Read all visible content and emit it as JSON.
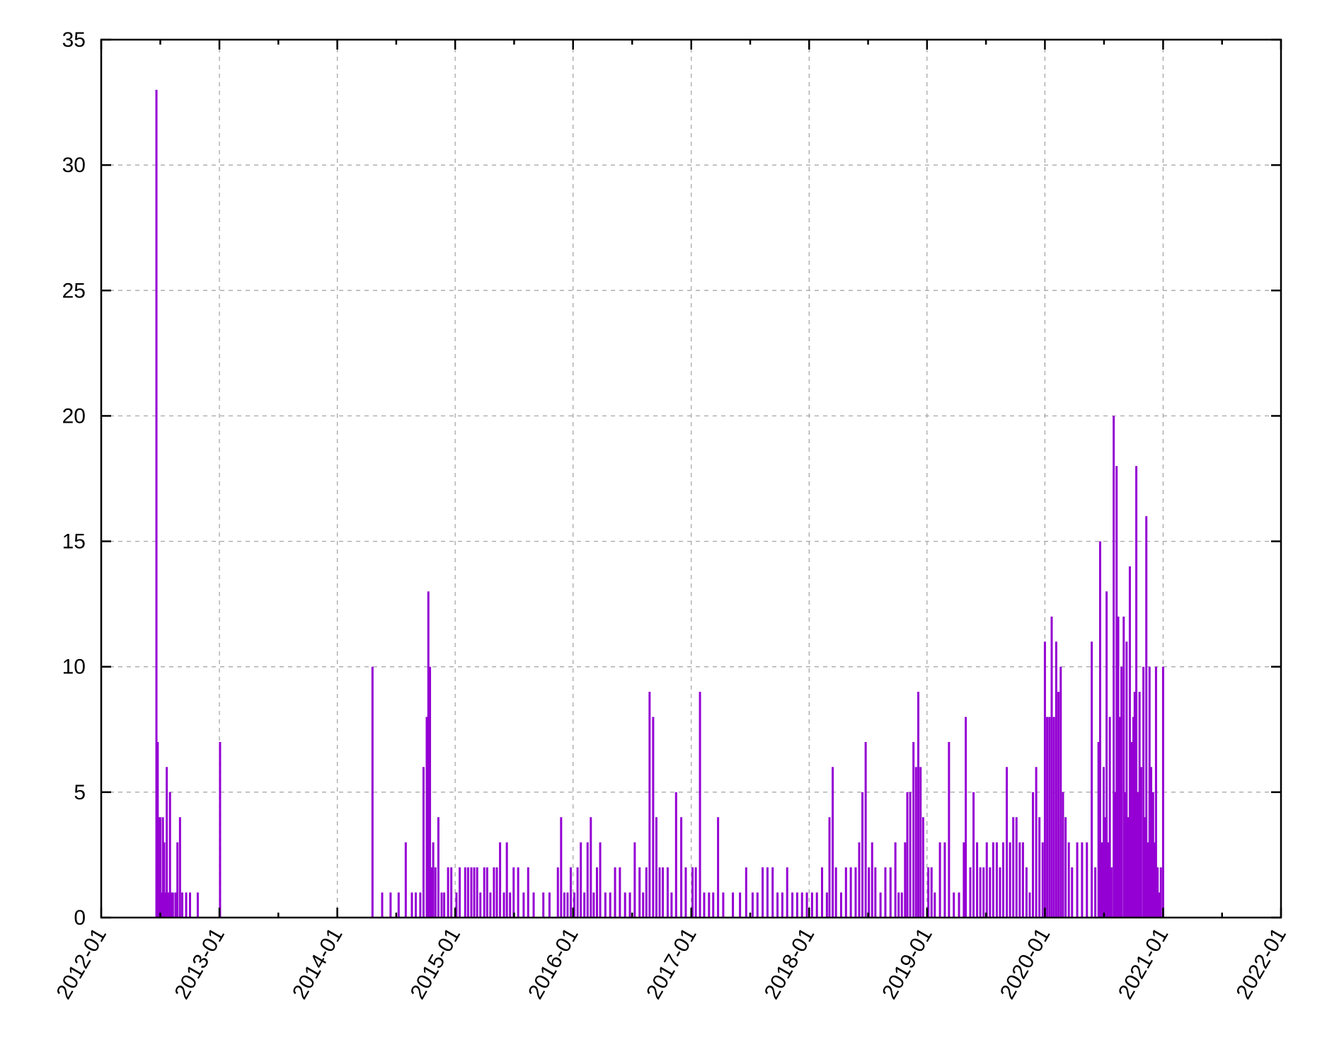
{
  "chart_data": {
    "type": "bar",
    "title": "",
    "xlabel": "",
    "ylabel": "",
    "xlim": [
      "2012-01",
      "2022-01"
    ],
    "ylim": [
      0,
      35
    ],
    "grid": true,
    "bar_color": "#9400d3",
    "y_ticks": [
      "0",
      "5",
      "10",
      "15",
      "20",
      "25",
      "30",
      "35"
    ],
    "x_ticks": [
      "2012-01",
      "2013-01",
      "2014-01",
      "2015-01",
      "2016-01",
      "2017-01",
      "2018-01",
      "2019-01",
      "2020-01",
      "2021-01",
      "2022-01"
    ],
    "series": [
      {
        "x": [
          "2012-06-20",
          "2012-06-22",
          "2012-06-24",
          "2012-06-26",
          "2012-06-28",
          "2012-07-02",
          "2012-07-06",
          "2012-07-10",
          "2012-07-14",
          "2012-07-18",
          "2012-07-22",
          "2012-07-26",
          "2012-08-01",
          "2012-08-06",
          "2012-08-10",
          "2012-08-14",
          "2012-08-18",
          "2012-08-24",
          "2012-09-01",
          "2012-09-08",
          "2012-09-20",
          "2012-10-02",
          "2012-10-15",
          "2012-10-26",
          "2012-11-02",
          "2012-11-15",
          "2012-11-25",
          "2012-12-05",
          "2013-01-03",
          "2014-04-20",
          "2014-05-20",
          "2014-06-15",
          "2014-07-10",
          "2014-08-01",
          "2014-08-20",
          "2014-09-01",
          "2014-09-15",
          "2014-09-25",
          "2014-10-05",
          "2014-10-10",
          "2014-10-15",
          "2014-10-20",
          "2014-10-25",
          "2014-11-01",
          "2014-11-10",
          "2014-11-20",
          "2014-11-28",
          "2014-12-10",
          "2014-12-20",
          "2015-01-05",
          "2015-01-15",
          "2015-02-01",
          "2015-02-10",
          "2015-02-20",
          "2015-03-01",
          "2015-03-10",
          "2015-03-20",
          "2015-04-01",
          "2015-04-10",
          "2015-04-20",
          "2015-05-01",
          "2015-05-10",
          "2015-05-20",
          "2015-06-01",
          "2015-06-10",
          "2015-06-20",
          "2015-07-01",
          "2015-07-15",
          "2015-08-01",
          "2015-08-15",
          "2015-09-01",
          "2015-10-01",
          "2015-10-20",
          "2015-11-15",
          "2015-11-25",
          "2015-12-05",
          "2015-12-15",
          "2015-12-25",
          "2016-01-05",
          "2016-01-15",
          "2016-01-25",
          "2016-02-05",
          "2016-02-15",
          "2016-02-25",
          "2016-03-05",
          "2016-03-15",
          "2016-03-25",
          "2016-04-10",
          "2016-04-25",
          "2016-05-10",
          "2016-05-25",
          "2016-06-10",
          "2016-06-25",
          "2016-07-10",
          "2016-07-25",
          "2016-08-05",
          "2016-08-15",
          "2016-08-25",
          "2016-09-05",
          "2016-09-15",
          "2016-09-25",
          "2016-10-05",
          "2016-10-20",
          "2016-11-01",
          "2016-11-15",
          "2016-12-01",
          "2016-12-15",
          "2017-01-05",
          "2017-01-15",
          "2017-01-28",
          "2017-02-10",
          "2017-02-25",
          "2017-03-10",
          "2017-03-25",
          "2017-04-10",
          "2017-05-10",
          "2017-06-01",
          "2017-06-20",
          "2017-07-10",
          "2017-07-25",
          "2017-08-10",
          "2017-08-25",
          "2017-09-10",
          "2017-09-25",
          "2017-10-10",
          "2017-10-25",
          "2017-11-10",
          "2017-11-25",
          "2017-12-10",
          "2017-12-25",
          "2018-01-10",
          "2018-01-25",
          "2018-02-10",
          "2018-02-25",
          "2018-03-05",
          "2018-03-15",
          "2018-03-25",
          "2018-04-10",
          "2018-04-25",
          "2018-05-10",
          "2018-05-25",
          "2018-06-05",
          "2018-06-15",
          "2018-06-25",
          "2018-07-05",
          "2018-07-15",
          "2018-07-25",
          "2018-08-10",
          "2018-08-25",
          "2018-09-10",
          "2018-09-25",
          "2018-10-05",
          "2018-10-15",
          "2018-10-25",
          "2018-11-01",
          "2018-11-10",
          "2018-11-20",
          "2018-11-28",
          "2018-12-05",
          "2018-12-12",
          "2018-12-20",
          "2019-01-05",
          "2019-01-15",
          "2019-01-25",
          "2019-02-10",
          "2019-02-25",
          "2019-03-10",
          "2019-03-25",
          "2019-04-10",
          "2019-04-25",
          "2019-05-01",
          "2019-05-15",
          "2019-05-25",
          "2019-06-05",
          "2019-06-15",
          "2019-06-25",
          "2019-07-05",
          "2019-07-15",
          "2019-07-25",
          "2019-08-05",
          "2019-08-15",
          "2019-08-25",
          "2019-09-05",
          "2019-09-15",
          "2019-09-25",
          "2019-10-05",
          "2019-10-15",
          "2019-10-25",
          "2019-11-05",
          "2019-11-15",
          "2019-11-25",
          "2019-12-05",
          "2019-12-15",
          "2019-12-25",
          "2020-01-01",
          "2020-01-08",
          "2020-01-15",
          "2020-01-22",
          "2020-01-29",
          "2020-02-05",
          "2020-02-12",
          "2020-02-19",
          "2020-02-26",
          "2020-03-05",
          "2020-03-15",
          "2020-03-25",
          "2020-04-10",
          "2020-04-25",
          "2020-05-10",
          "2020-05-25",
          "2020-06-05",
          "2020-06-15",
          "2020-06-20",
          "2020-06-25",
          "2020-07-01",
          "2020-07-05",
          "2020-07-10",
          "2020-07-15",
          "2020-07-20",
          "2020-07-25",
          "2020-08-01",
          "2020-08-05",
          "2020-08-10",
          "2020-08-15",
          "2020-08-20",
          "2020-08-25",
          "2020-09-01",
          "2020-09-05",
          "2020-09-10",
          "2020-09-15",
          "2020-09-20",
          "2020-09-25",
          "2020-10-01",
          "2020-10-05",
          "2020-10-10",
          "2020-10-15",
          "2020-10-20",
          "2020-10-25",
          "2020-11-01",
          "2020-11-05",
          "2020-11-10",
          "2020-11-15",
          "2020-11-20",
          "2020-11-25",
          "2020-12-01",
          "2020-12-05",
          "2020-12-10",
          "2020-12-15",
          "2020-12-20",
          "2020-12-25",
          "2021-01-01"
        ],
        "y": [
          33,
          5,
          7,
          4,
          2,
          4,
          1,
          4,
          3,
          1,
          6,
          1,
          5,
          1,
          1,
          0,
          1,
          3,
          4,
          1,
          1,
          1,
          0,
          1,
          0,
          0,
          0,
          0,
          7,
          10,
          1,
          1,
          1,
          3,
          1,
          1,
          1,
          6,
          8,
          13,
          10,
          2,
          3,
          2,
          4,
          1,
          1,
          2,
          2,
          1,
          2,
          2,
          2,
          2,
          2,
          2,
          1,
          2,
          2,
          1,
          2,
          2,
          3,
          1,
          3,
          1,
          2,
          2,
          1,
          2,
          1,
          1,
          1,
          2,
          4,
          1,
          1,
          2,
          1,
          2,
          3,
          1,
          3,
          4,
          1,
          2,
          3,
          1,
          1,
          2,
          2,
          1,
          1,
          3,
          2,
          1,
          2,
          9,
          8,
          4,
          2,
          2,
          2,
          1,
          5,
          4,
          2,
          2,
          2,
          9,
          1,
          1,
          1,
          4,
          1,
          1,
          1,
          2,
          1,
          1,
          2,
          2,
          2,
          1,
          1,
          2,
          1,
          1,
          1,
          1,
          1,
          1,
          2,
          1,
          4,
          6,
          2,
          1,
          2,
          2,
          2,
          3,
          5,
          7,
          2,
          3,
          2,
          1,
          2,
          2,
          3,
          1,
          1,
          3,
          5,
          5,
          7,
          6,
          9,
          6,
          4,
          2,
          2,
          1,
          3,
          3,
          7,
          1,
          1,
          3,
          8,
          2,
          5,
          3,
          2,
          2,
          3,
          2,
          3,
          3,
          2,
          3,
          6,
          3,
          4,
          4,
          3,
          3,
          2,
          1,
          5,
          6,
          4,
          3,
          11,
          8,
          8,
          12,
          8,
          11,
          9,
          10,
          5,
          4,
          3,
          2,
          3,
          3,
          3,
          11,
          2,
          7,
          15,
          3,
          6,
          4,
          13,
          3,
          8,
          2,
          20,
          5,
          18,
          12,
          8,
          10,
          12,
          5,
          11,
          4,
          14,
          7,
          8,
          9,
          18,
          5,
          9,
          6,
          10,
          4,
          16,
          3,
          10,
          6,
          5,
          3,
          10,
          2,
          1,
          2,
          10
        ]
      }
    ]
  }
}
